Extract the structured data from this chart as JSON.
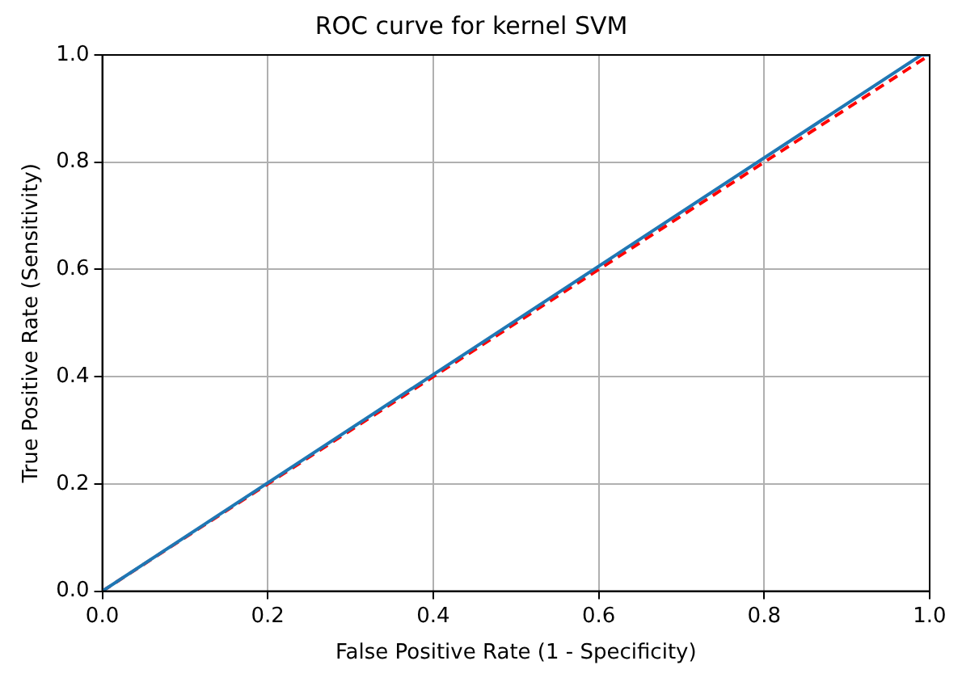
{
  "chart_data": {
    "type": "line",
    "title": "ROC curve for kernel SVM",
    "xlabel": "False Positive Rate (1 - Specificity)",
    "ylabel": "True Positive Rate (Sensitivity)",
    "series": [
      {
        "color": "#1f77b4",
        "x": [
          0,
          0.99,
          1
        ],
        "values": [
          0,
          1,
          1
        ],
        "line_style": "solid"
      },
      {
        "color": "#ff0000",
        "x": [
          0,
          1
        ],
        "values": [
          0,
          1
        ],
        "line_style": "dashed"
      }
    ],
    "xlim": [
      0,
      1
    ],
    "ylim": [
      0,
      1
    ],
    "xticks": [
      {
        "value": 0,
        "label": "0.0"
      },
      {
        "value": 0.2,
        "label": "0.2"
      },
      {
        "value": 0.4,
        "label": "0.4"
      },
      {
        "value": 0.6,
        "label": "0.6"
      },
      {
        "value": 0.8,
        "label": "0.8"
      },
      {
        "value": 1,
        "label": "1.0"
      }
    ],
    "yticks": [
      {
        "value": 0,
        "label": "0.0"
      },
      {
        "value": 0.2,
        "label": "0.2"
      },
      {
        "value": 0.4,
        "label": "0.4"
      },
      {
        "value": 0.6,
        "label": "0.6"
      },
      {
        "value": 0.8,
        "label": "0.8"
      },
      {
        "value": 1,
        "label": "1.0"
      }
    ],
    "grid": true,
    "marker": "none",
    "legend": false
  }
}
